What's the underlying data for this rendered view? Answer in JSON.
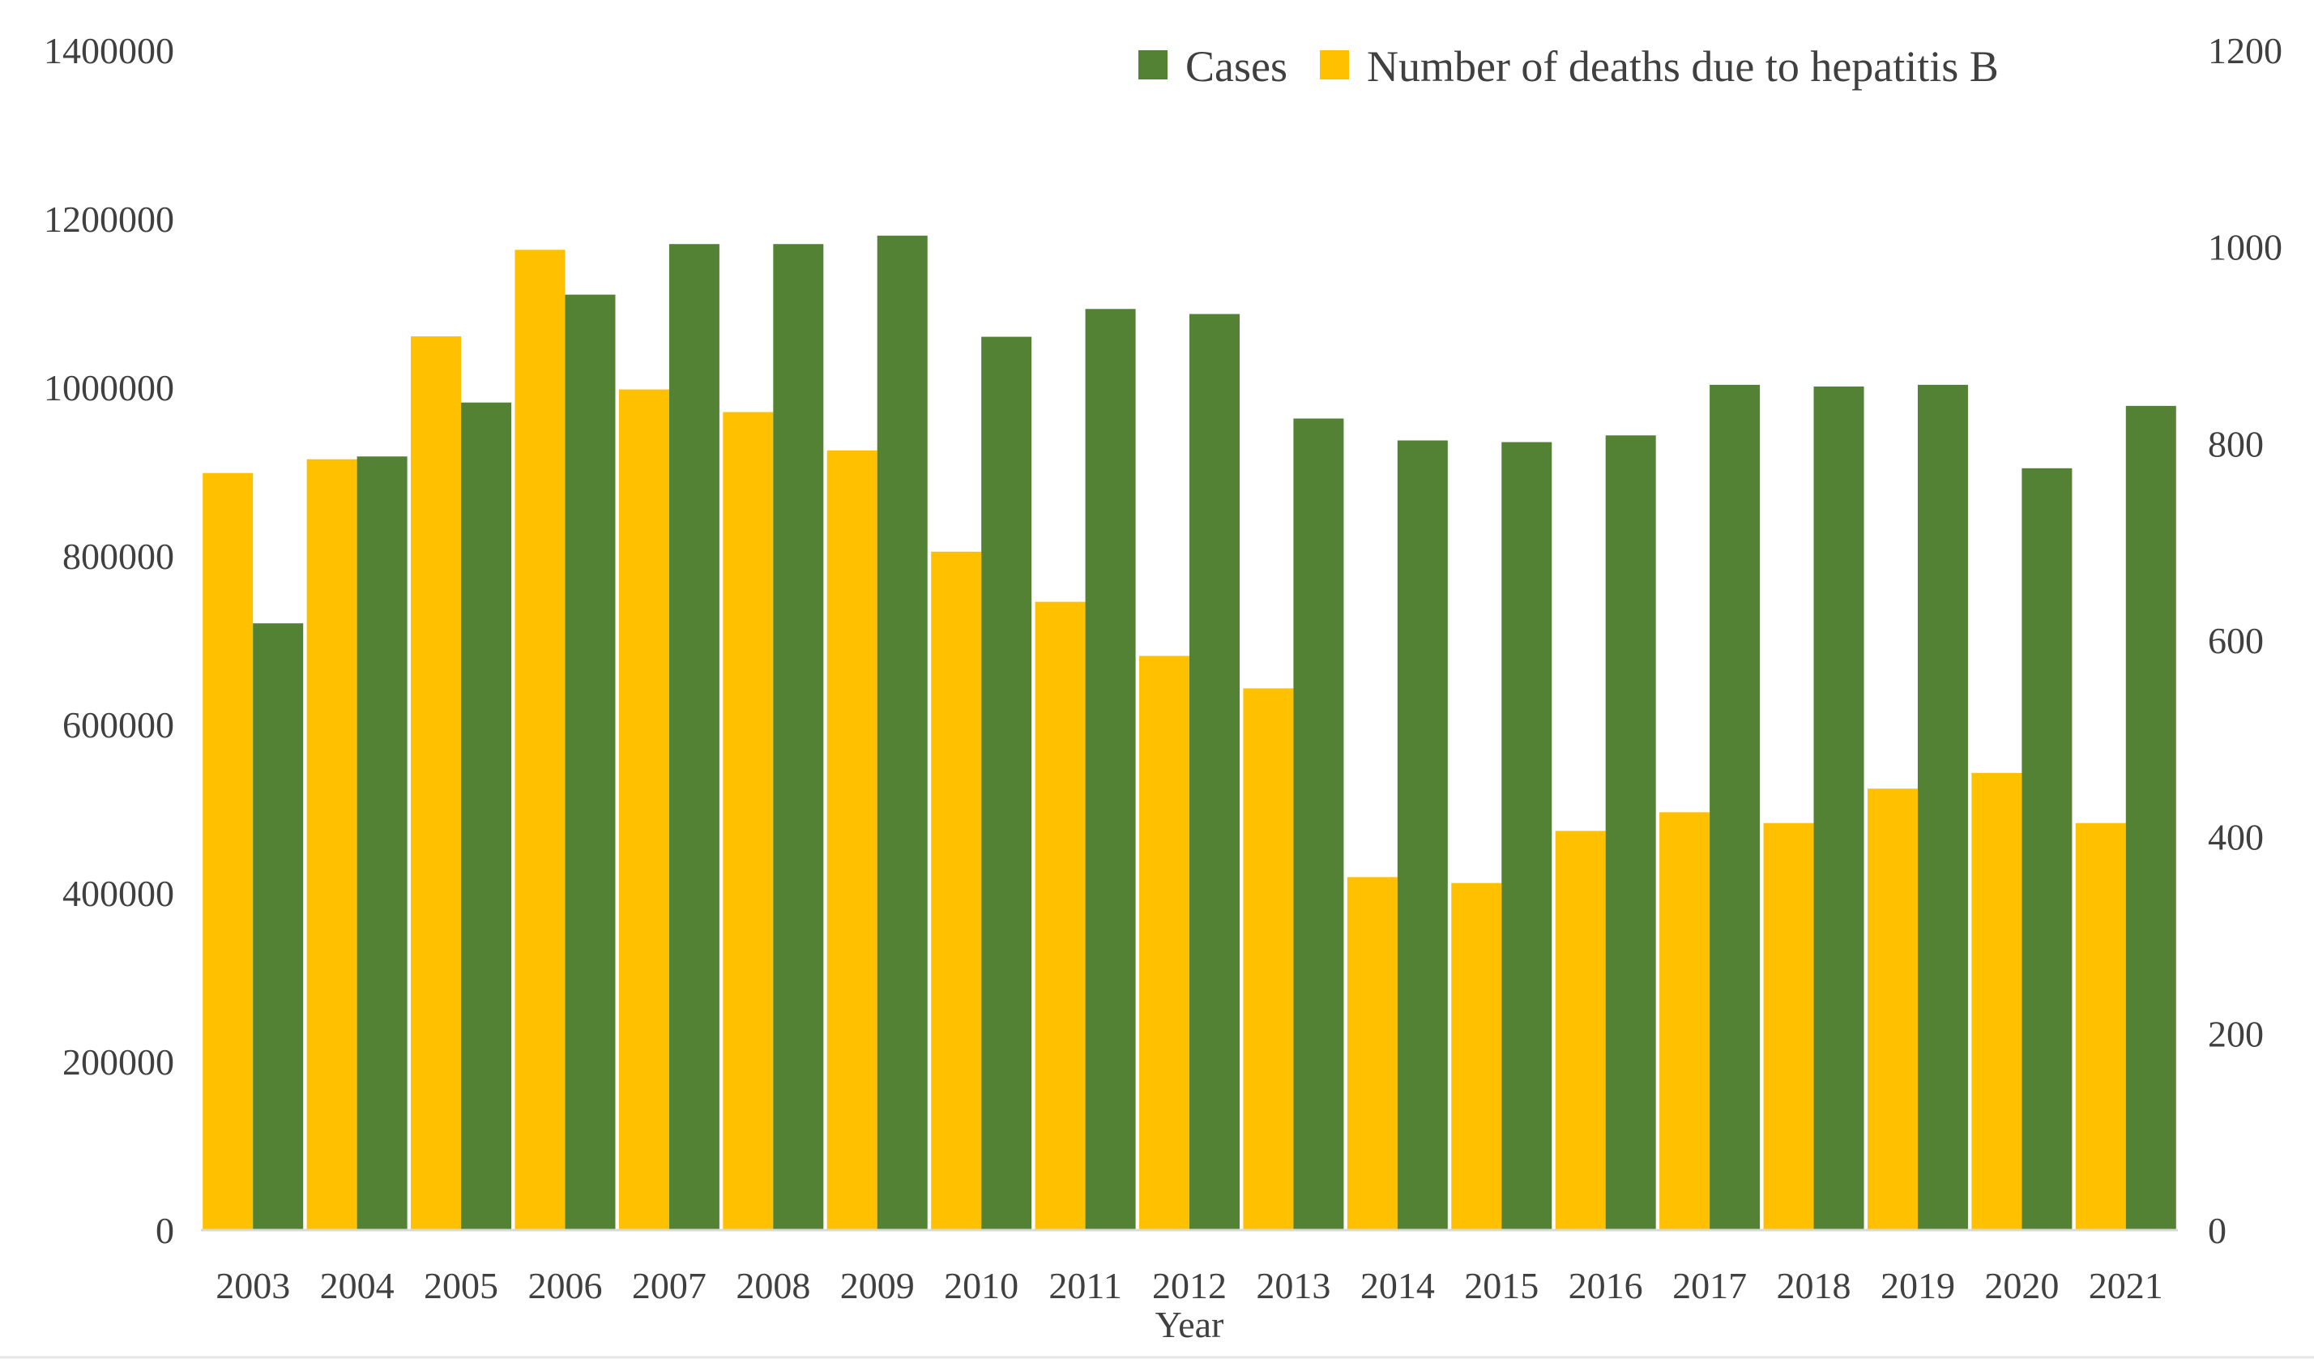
{
  "chart_data": {
    "type": "bar",
    "title": "",
    "xlabel": "Year",
    "ylabel": "",
    "ylabel_right": "",
    "categories": [
      "2003",
      "2004",
      "2005",
      "2006",
      "2007",
      "2008",
      "2009",
      "2010",
      "2011",
      "2012",
      "2013",
      "2014",
      "2015",
      "2016",
      "2017",
      "2018",
      "2019",
      "2020",
      "2021"
    ],
    "ylim": [
      0,
      1400000
    ],
    "yticks": [
      0,
      200000,
      400000,
      600000,
      800000,
      1000000,
      1200000,
      1400000
    ],
    "ylim_right": [
      0,
      1200
    ],
    "yticks_right": [
      0,
      200,
      400,
      600,
      800,
      1000,
      1200
    ],
    "grid": false,
    "legend_position": "top-right",
    "series": [
      {
        "name": "Number of deaths due to hepatitis B",
        "axis": "right",
        "color": "#FFC000",
        "values": [
          770,
          784,
          909,
          997,
          855,
          832,
          793,
          690,
          639,
          584,
          551,
          359,
          353,
          406,
          425,
          414,
          449,
          465,
          414
        ]
      },
      {
        "name": "Cases",
        "axis": "left",
        "color": "#548235",
        "values": [
          720000,
          918000,
          982000,
          1110000,
          1170000,
          1170000,
          1180000,
          1060000,
          1093000,
          1087000,
          963000,
          937000,
          935000,
          943000,
          1003000,
          1001000,
          1003000,
          904000,
          978000
        ]
      }
    ],
    "legend": [
      {
        "label": "Cases",
        "color": "#548235"
      },
      {
        "label": "Number of deaths due to hepatitis B",
        "color": "#FFC000"
      }
    ]
  }
}
